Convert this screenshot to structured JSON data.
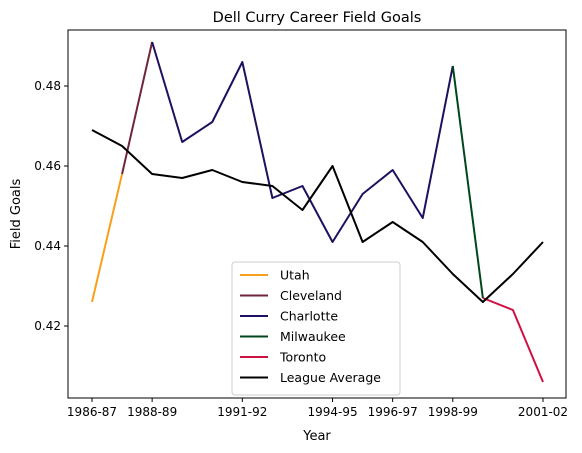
{
  "chart_data": {
    "type": "line",
    "title": "Dell Curry Career Field Goals",
    "xlabel": "Year",
    "ylabel": "Field Goals",
    "seasons": [
      "1986-87",
      "1987-88",
      "1988-89",
      "1989-90",
      "1990-91",
      "1991-92",
      "1992-93",
      "1993-94",
      "1994-95",
      "1995-96",
      "1996-97",
      "1997-98",
      "1998-99",
      "1999-00",
      "2000-01",
      "2001-02"
    ],
    "xticks": [
      "1986-87",
      "1988-89",
      "1991-92",
      "1994-95",
      "1996-97",
      "1998-99",
      "2001-02"
    ],
    "yticks": [
      "0.42",
      "0.44",
      "0.46",
      "0.48"
    ],
    "ylim": [
      0.402,
      0.494
    ],
    "grid": false,
    "legend_position": "lower-center",
    "series": [
      {
        "name": "Utah",
        "color": "#F9A01B",
        "x": [
          "1986-87",
          "1987-88"
        ],
        "y": [
          0.426,
          0.458
        ]
      },
      {
        "name": "Cleveland",
        "color": "#6F263D",
        "x": [
          "1987-88",
          "1988-89"
        ],
        "y": [
          0.458,
          0.491
        ]
      },
      {
        "name": "Charlotte",
        "color": "#1D1160",
        "x": [
          "1988-89",
          "1989-90",
          "1990-91",
          "1991-92",
          "1992-93",
          "1993-94",
          "1994-95",
          "1995-96",
          "1996-97",
          "1997-98",
          "1998-99"
        ],
        "y": [
          0.491,
          0.466,
          0.471,
          0.486,
          0.452,
          0.455,
          0.441,
          0.453,
          0.459,
          0.447,
          0.485
        ]
      },
      {
        "name": "Milwaukee",
        "color": "#00471B",
        "x": [
          "1998-99",
          "1999-00"
        ],
        "y": [
          0.485,
          0.427
        ]
      },
      {
        "name": "Toronto",
        "color": "#CE1141",
        "x": [
          "1999-00",
          "2000-01",
          "2001-02"
        ],
        "y": [
          0.427,
          0.424,
          0.406
        ]
      },
      {
        "name": "League Average",
        "color": "#000000",
        "x": [
          "1986-87",
          "1987-88",
          "1988-89",
          "1989-90",
          "1990-91",
          "1991-92",
          "1992-93",
          "1993-94",
          "1994-95",
          "1995-96",
          "1996-97",
          "1997-98",
          "1998-99",
          "1999-00",
          "2000-01",
          "2001-02"
        ],
        "y": [
          0.469,
          0.465,
          0.458,
          0.457,
          0.459,
          0.456,
          0.455,
          0.449,
          0.46,
          0.441,
          0.446,
          0.441,
          0.433,
          0.426,
          0.433,
          0.441
        ]
      }
    ]
  }
}
